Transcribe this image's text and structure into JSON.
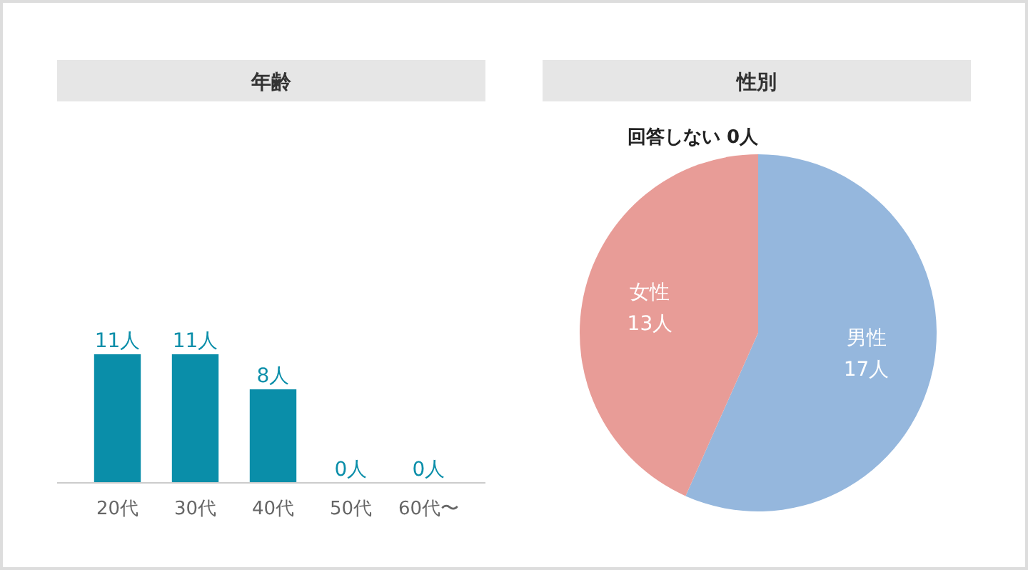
{
  "chart_data": [
    {
      "type": "bar",
      "title": "年齢",
      "categories": [
        "20代",
        "30代",
        "40代",
        "50代",
        "60代〜"
      ],
      "values": [
        11,
        11,
        8,
        0,
        0
      ],
      "value_labels": [
        "11人",
        "11人",
        "8人",
        "0人",
        "0人"
      ],
      "color": "#0a8ea9"
    },
    {
      "type": "pie",
      "title": "性別",
      "categories": [
        "男性",
        "女性",
        "回答しない"
      ],
      "values": [
        17,
        13,
        0
      ],
      "value_labels": [
        "17人",
        "13人",
        "0人"
      ],
      "colors": [
        "#95b7dd",
        "#e89c97",
        "#cccccc"
      ]
    }
  ]
}
